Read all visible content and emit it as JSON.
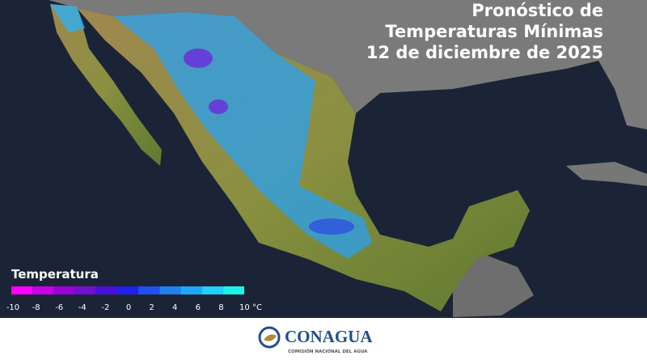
{
  "title_lines": [
    "Pronóstico de",
    "Temperaturas Mínimas",
    "12 de diciembre de 2025"
  ],
  "legend": {
    "title": "Temperatura",
    "ticks": [
      -10,
      -8,
      -6,
      -4,
      -2,
      0,
      2,
      4,
      6,
      8,
      {
        "value": 10,
        "label": "10 °C"
      }
    ],
    "colors": [
      "#ff00ff",
      "#c800e6",
      "#9a00d8",
      "#7010d0",
      "#4a10d8",
      "#2020e8",
      "#2050f0",
      "#2080f0",
      "#20a8f8",
      "#20d0f8",
      "#20f0e8"
    ]
  },
  "footer": {
    "logo": "CONAGUA",
    "subtitle": "COMISIÓN NACIONAL DEL AGUA"
  }
}
